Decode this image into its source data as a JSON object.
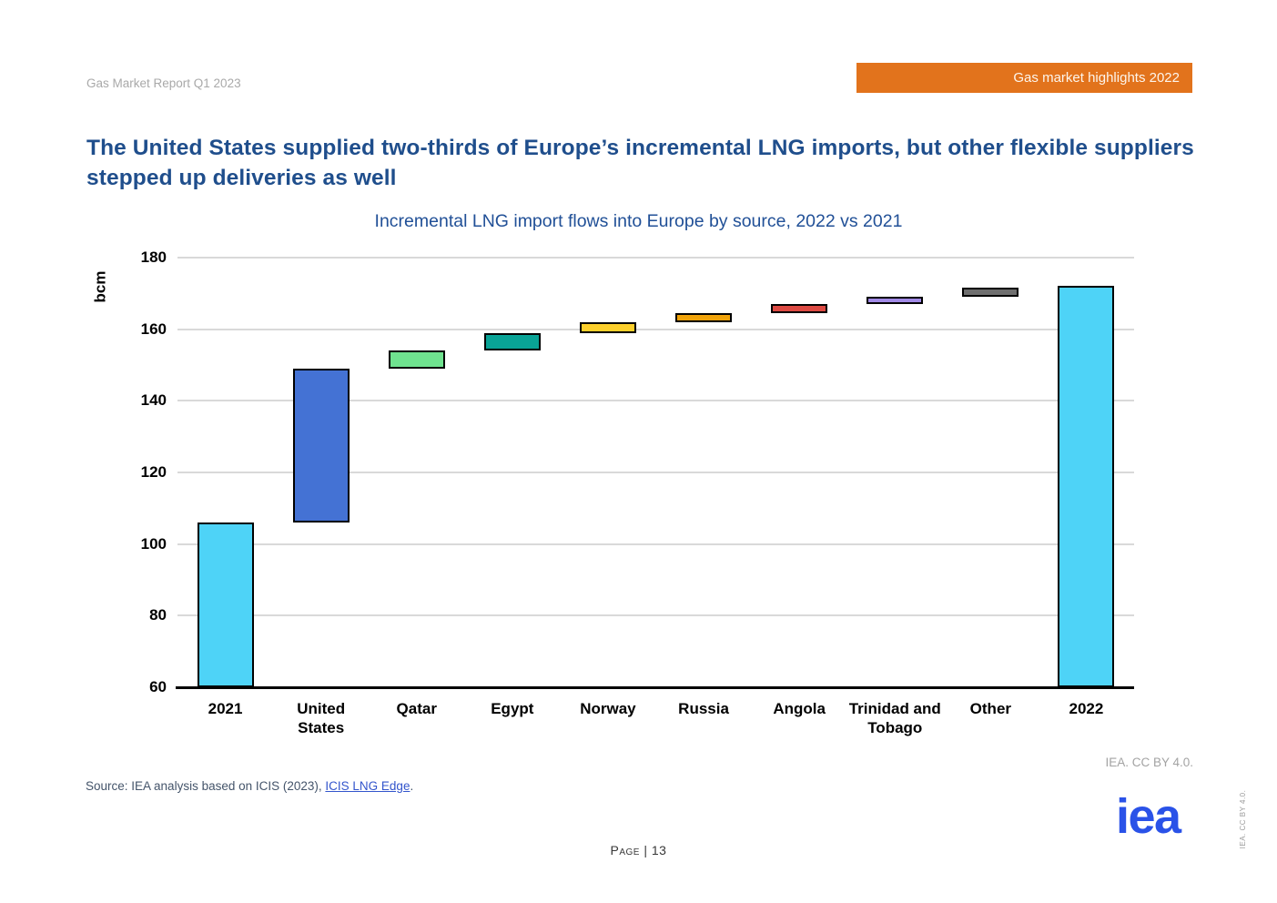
{
  "header": {
    "report_label": "Gas Market Report Q1 2023",
    "banner_label": "Gas market highlights 2022"
  },
  "headline": "The United States supplied two-thirds of Europe’s incremental LNG imports, but other flexible suppliers stepped up deliveries as well",
  "chart_data": {
    "type": "bar",
    "subtype": "waterfall",
    "title": "Incremental LNG import flows into Europe by source, 2022 vs 2021",
    "ylabel": "bcm",
    "ylim": [
      60,
      180
    ],
    "yticks": [
      60,
      80,
      100,
      120,
      140,
      160,
      180
    ],
    "grid": true,
    "legend": "none",
    "categories": [
      "2021",
      "United States",
      "Qatar",
      "Egypt",
      "Norway",
      "Russia",
      "Angola",
      "Trinidad and Tobago",
      "Other",
      "2022"
    ],
    "bars": [
      {
        "category": "2021",
        "display_label": "2021",
        "kind": "total",
        "base": 60,
        "top": 106,
        "color": "#4ed3f7"
      },
      {
        "category": "United States",
        "display_label": "United\nStates",
        "kind": "increment",
        "base": 106,
        "top": 149,
        "color": "#4472d4"
      },
      {
        "category": "Qatar",
        "display_label": "Qatar",
        "kind": "increment",
        "base": 149,
        "top": 154,
        "color": "#6fe38f"
      },
      {
        "category": "Egypt",
        "display_label": "Egypt",
        "kind": "increment",
        "base": 154,
        "top": 159,
        "color": "#09a396"
      },
      {
        "category": "Norway",
        "display_label": "Norway",
        "kind": "increment",
        "base": 159,
        "top": 162,
        "color": "#fdd02c"
      },
      {
        "category": "Russia",
        "display_label": "Russia",
        "kind": "increment",
        "base": 162,
        "top": 164.5,
        "color": "#f0a30a"
      },
      {
        "category": "Angola",
        "display_label": "Angola",
        "kind": "increment",
        "base": 164.5,
        "top": 167,
        "color": "#dd4a43"
      },
      {
        "category": "Trinidad and Tobago",
        "display_label": "Trinidad and\nTobago",
        "kind": "increment",
        "base": 167,
        "top": 169,
        "color": "#a18ae6"
      },
      {
        "category": "Other",
        "display_label": "Other",
        "kind": "increment",
        "base": 169,
        "top": 171.7,
        "color": "#6f6f6f"
      },
      {
        "category": "2022",
        "display_label": "2022",
        "kind": "total",
        "base": 60,
        "top": 172,
        "color": "#4ed3f7"
      }
    ]
  },
  "footer": {
    "credit": "IEA. CC BY 4.0.",
    "source_prefix": "Source: IEA analysis based on ICIS (2023), ",
    "source_link_text": "ICIS LNG Edge",
    "source_suffix": ".",
    "page_label": "Page | 13",
    "logo_text": "iea",
    "vertical_credit": "IEA. CC BY 4.0."
  },
  "colors": {
    "banner_bg": "#e2731c",
    "headline": "#1f4e8c",
    "chart_title": "#215097",
    "logo_blue": "#2a52e8",
    "link": "#3355cc",
    "gridline": "#d9d9d9",
    "axis": "#000000",
    "total_bar": "#4ed3f7"
  }
}
